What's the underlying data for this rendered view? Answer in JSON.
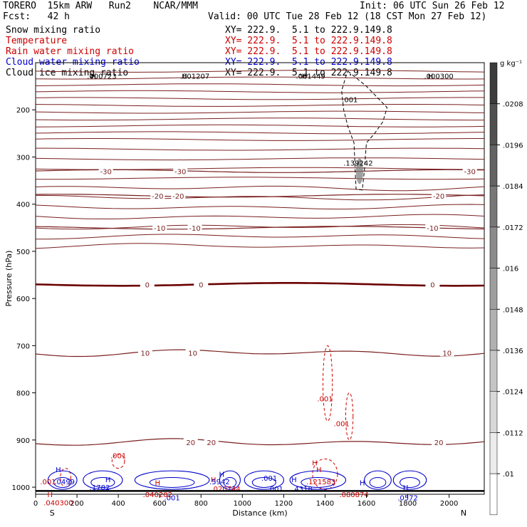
{
  "header": {
    "title_left": "TORERO  15km ARW   Run2    NCAR/MMM",
    "init": "Init: 06 UTC Sun 26 Feb 12",
    "fcst_label": "Fcst:   42 h",
    "valid": "Valid: 00 UTC Tue 28 Feb 12 (18 CST Mon 27 Feb 12)",
    "fields": [
      {
        "name": "Snow mixing ratio",
        "xy": "XY= 222.9.  5.1 to 222.9.149.8",
        "color": "#000000"
      },
      {
        "name": "Temperature",
        "xy": "XY= 222.9.  5.1 to 222.9.149.8",
        "color": "#cc0000"
      },
      {
        "name": "Rain water mixing ratio",
        "xy": "XY= 222.9.  5.1 to 222.9.149.8",
        "color": "#cc0000"
      },
      {
        "name": "Cloud water mixing ratio",
        "xy": "XY= 222.9.  5.1 to 222.9.149.8",
        "color": "#0000cc"
      },
      {
        "name": "Cloud ice mixing ratio",
        "xy": "XY= 222.9.  5.1 to 222.9.149.8",
        "color": "#000000"
      }
    ]
  },
  "chart_data": {
    "type": "cross-section contour",
    "xlabel": "Distance (km)",
    "ylabel": "Pressure (hPa)",
    "xlim": [
      0,
      2170
    ],
    "ylim": [
      1015,
      100
    ],
    "x_ticks": [
      0,
      200,
      400,
      600,
      800,
      1000,
      1200,
      1400,
      1600,
      1800,
      2000
    ],
    "y_ticks": [
      200,
      300,
      400,
      500,
      600,
      700,
      800,
      900,
      1000
    ],
    "end_labels": {
      "left": "S",
      "right": "N"
    },
    "colorbar": {
      "unit": "g kg⁻¹",
      "ticks": [
        ".0208",
        ".0196",
        ".0184",
        ".0172",
        ".016",
        ".0148",
        ".0136",
        ".0124",
        ".0112",
        ".01"
      ]
    },
    "temperature_isotherms": [
      {
        "value": -30,
        "pressure": 330,
        "labels": [
          "-30",
          "-30",
          "-30"
        ],
        "label_x": [
          340,
          700,
          2100
        ]
      },
      {
        "value": -20,
        "pressure": 382,
        "labels": [
          "-20",
          "-20",
          "-20"
        ],
        "label_x": [
          590,
          690,
          1950
        ]
      },
      {
        "value": -10,
        "pressure": 450,
        "labels": [
          "-10",
          "-10",
          "-10"
        ],
        "label_x": [
          600,
          770,
          1920
        ]
      },
      {
        "value": 0,
        "pressure": 570,
        "labels": [
          "0",
          "0",
          "0"
        ],
        "label_x": [
          540,
          800,
          1920
        ]
      },
      {
        "value": 10,
        "pressure": 715,
        "labels": [
          "10",
          "10",
          "10"
        ],
        "label_x": [
          530,
          760,
          1990
        ]
      },
      {
        "value": 20,
        "pressure": 905,
        "labels": [
          "20",
          "20",
          "20"
        ],
        "label_x": [
          750,
          850,
          1950
        ]
      }
    ],
    "maxima_labels": [
      {
        "text": ".000723",
        "x": 320,
        "p": 128,
        "color": "#000000"
      },
      {
        "text": ".001207",
        "x": 770,
        "p": 128,
        "color": "#000000"
      },
      {
        "text": ".001449",
        "x": 1330,
        "p": 128,
        "color": "#000000"
      },
      {
        "text": ".000300",
        "x": 1950,
        "p": 128,
        "color": "#000000"
      },
      {
        "text": ".001",
        "x": 1520,
        "p": 178,
        "color": "#000000"
      },
      {
        "text": ".139242",
        "x": 1560,
        "p": 312,
        "color": "#000000"
      },
      {
        "text": ".001",
        "x": 1400,
        "p": 812,
        "color": "#cc0000"
      },
      {
        "text": ".001",
        "x": 1480,
        "p": 865,
        "color": "#cc0000"
      },
      {
        "text": ".001",
        "x": 400,
        "p": 933,
        "color": "#cc0000"
      },
      {
        "text": ".0499",
        "x": 140,
        "p": 988,
        "color": "#0000cc"
      },
      {
        "text": ".1782",
        "x": 310,
        "p": 1000,
        "color": "#0000cc"
      },
      {
        "text": ".040202",
        "x": 590,
        "p": 1015,
        "color": "#cc0000"
      },
      {
        "text": ".001",
        "x": 660,
        "p": 1022,
        "color": "#0000cc"
      },
      {
        "text": ".5942",
        "x": 890,
        "p": 988,
        "color": "#0000cc"
      },
      {
        "text": ".020744",
        "x": 920,
        "p": 1003,
        "color": "#cc0000"
      },
      {
        "text": ".001",
        "x": 1130,
        "p": 980,
        "color": "#0000cc"
      },
      {
        "text": ".121583",
        "x": 1380,
        "p": 988,
        "color": "#cc0000"
      },
      {
        "text": ".4318",
        "x": 1290,
        "p": 1003,
        "color": "#0000cc"
      },
      {
        "text": ".080874",
        "x": 1540,
        "p": 1015,
        "color": "#cc0000"
      },
      {
        "text": ".0572",
        "x": 1800,
        "p": 1022,
        "color": "#0000cc"
      },
      {
        "text": ".040300",
        "x": 110,
        "p": 1032,
        "color": "#cc0000"
      },
      {
        "text": ".001",
        "x": 60,
        "p": 988,
        "color": "#cc0000"
      },
      {
        "text": ".001",
        "x": 1160,
        "p": 1003,
        "color": "#0000cc"
      }
    ],
    "extrema_marks": [
      {
        "text": "H",
        "x": 280,
        "p": 128,
        "color": "#000000"
      },
      {
        "text": "H",
        "x": 720,
        "p": 128,
        "color": "#000000"
      },
      {
        "text": "H",
        "x": 1300,
        "p": 128,
        "color": "#000000"
      },
      {
        "text": "H",
        "x": 1910,
        "p": 128,
        "color": "#000000"
      },
      {
        "text": "H",
        "x": 110,
        "p": 962,
        "color": "#0000cc"
      },
      {
        "text": "H",
        "x": 350,
        "p": 983,
        "color": "#0000cc"
      },
      {
        "text": "H",
        "x": 590,
        "p": 990,
        "color": "#cc0000"
      },
      {
        "text": "H",
        "x": 860,
        "p": 983,
        "color": "#cc0000"
      },
      {
        "text": "H",
        "x": 900,
        "p": 972,
        "color": "#0000cc"
      },
      {
        "text": "H",
        "x": 1250,
        "p": 983,
        "color": "#0000cc"
      },
      {
        "text": "H",
        "x": 1370,
        "p": 962,
        "color": "#cc0000"
      },
      {
        "text": "H",
        "x": 1580,
        "p": 990,
        "color": "#0000cc"
      },
      {
        "text": "H",
        "x": 1790,
        "p": 1000,
        "color": "#0000cc"
      },
      {
        "text": "H",
        "x": 70,
        "p": 1015,
        "color": "#cc0000"
      },
      {
        "text": "H",
        "x": 1350,
        "p": 948,
        "color": "#cc0000"
      }
    ],
    "colors": {
      "isotherm": "#7a1f1f",
      "zero_isotherm": "#6b0000",
      "rain": "#cc0000",
      "cloud_water": "#0000cc",
      "snow": "#000000",
      "ground": "#000000"
    }
  }
}
